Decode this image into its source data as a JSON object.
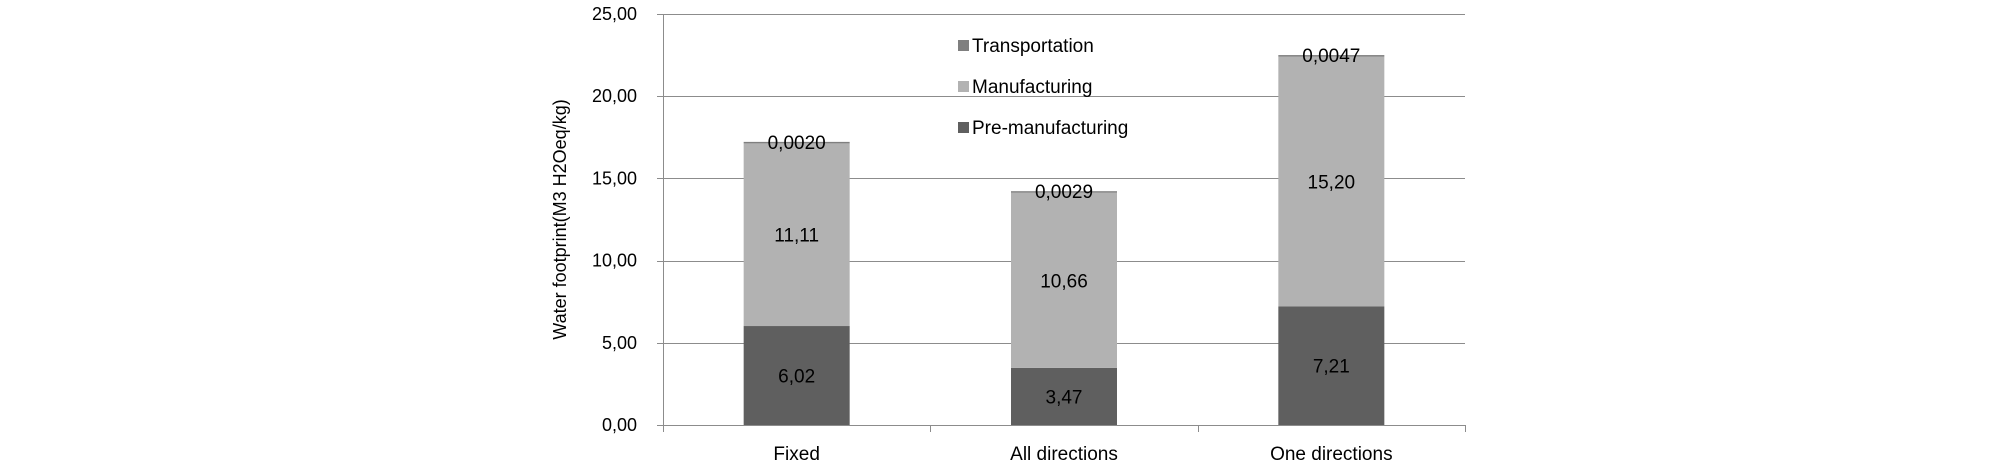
{
  "chart_data": {
    "type": "bar",
    "stacked": true,
    "categories": [
      "Fixed",
      "All directions",
      "One directions"
    ],
    "series": [
      {
        "name": "Pre-manufacturing",
        "values": [
          6.02,
          3.47,
          7.21
        ],
        "color": "#5f5f5f",
        "labels": [
          "6,02",
          "3,47",
          "7,21"
        ]
      },
      {
        "name": "Manufacturing",
        "values": [
          11.11,
          10.66,
          15.2
        ],
        "color": "#b2b2b2",
        "labels": [
          "11,11",
          "10,66",
          "15,20"
        ]
      },
      {
        "name": "Transportation",
        "values": [
          0.002,
          0.0029,
          0.0047
        ],
        "color": "#7f7f7f",
        "labels": [
          "0,0020",
          "0,0029",
          "0,0047"
        ]
      }
    ],
    "legend_order": [
      "Transportation",
      "Manufacturing",
      "Pre-manufacturing"
    ],
    "title": "",
    "xlabel": "",
    "ylabel": "Water footprint(M3 H2Oeq/kg)",
    "ylim": [
      0,
      25
    ],
    "yticks": [
      0,
      5,
      10,
      15,
      20,
      25
    ],
    "ytick_labels": [
      "0,00",
      "5,00",
      "10,00",
      "15,00",
      "20,00",
      "25,00"
    ],
    "grid": true,
    "legend_position": "top-center"
  }
}
